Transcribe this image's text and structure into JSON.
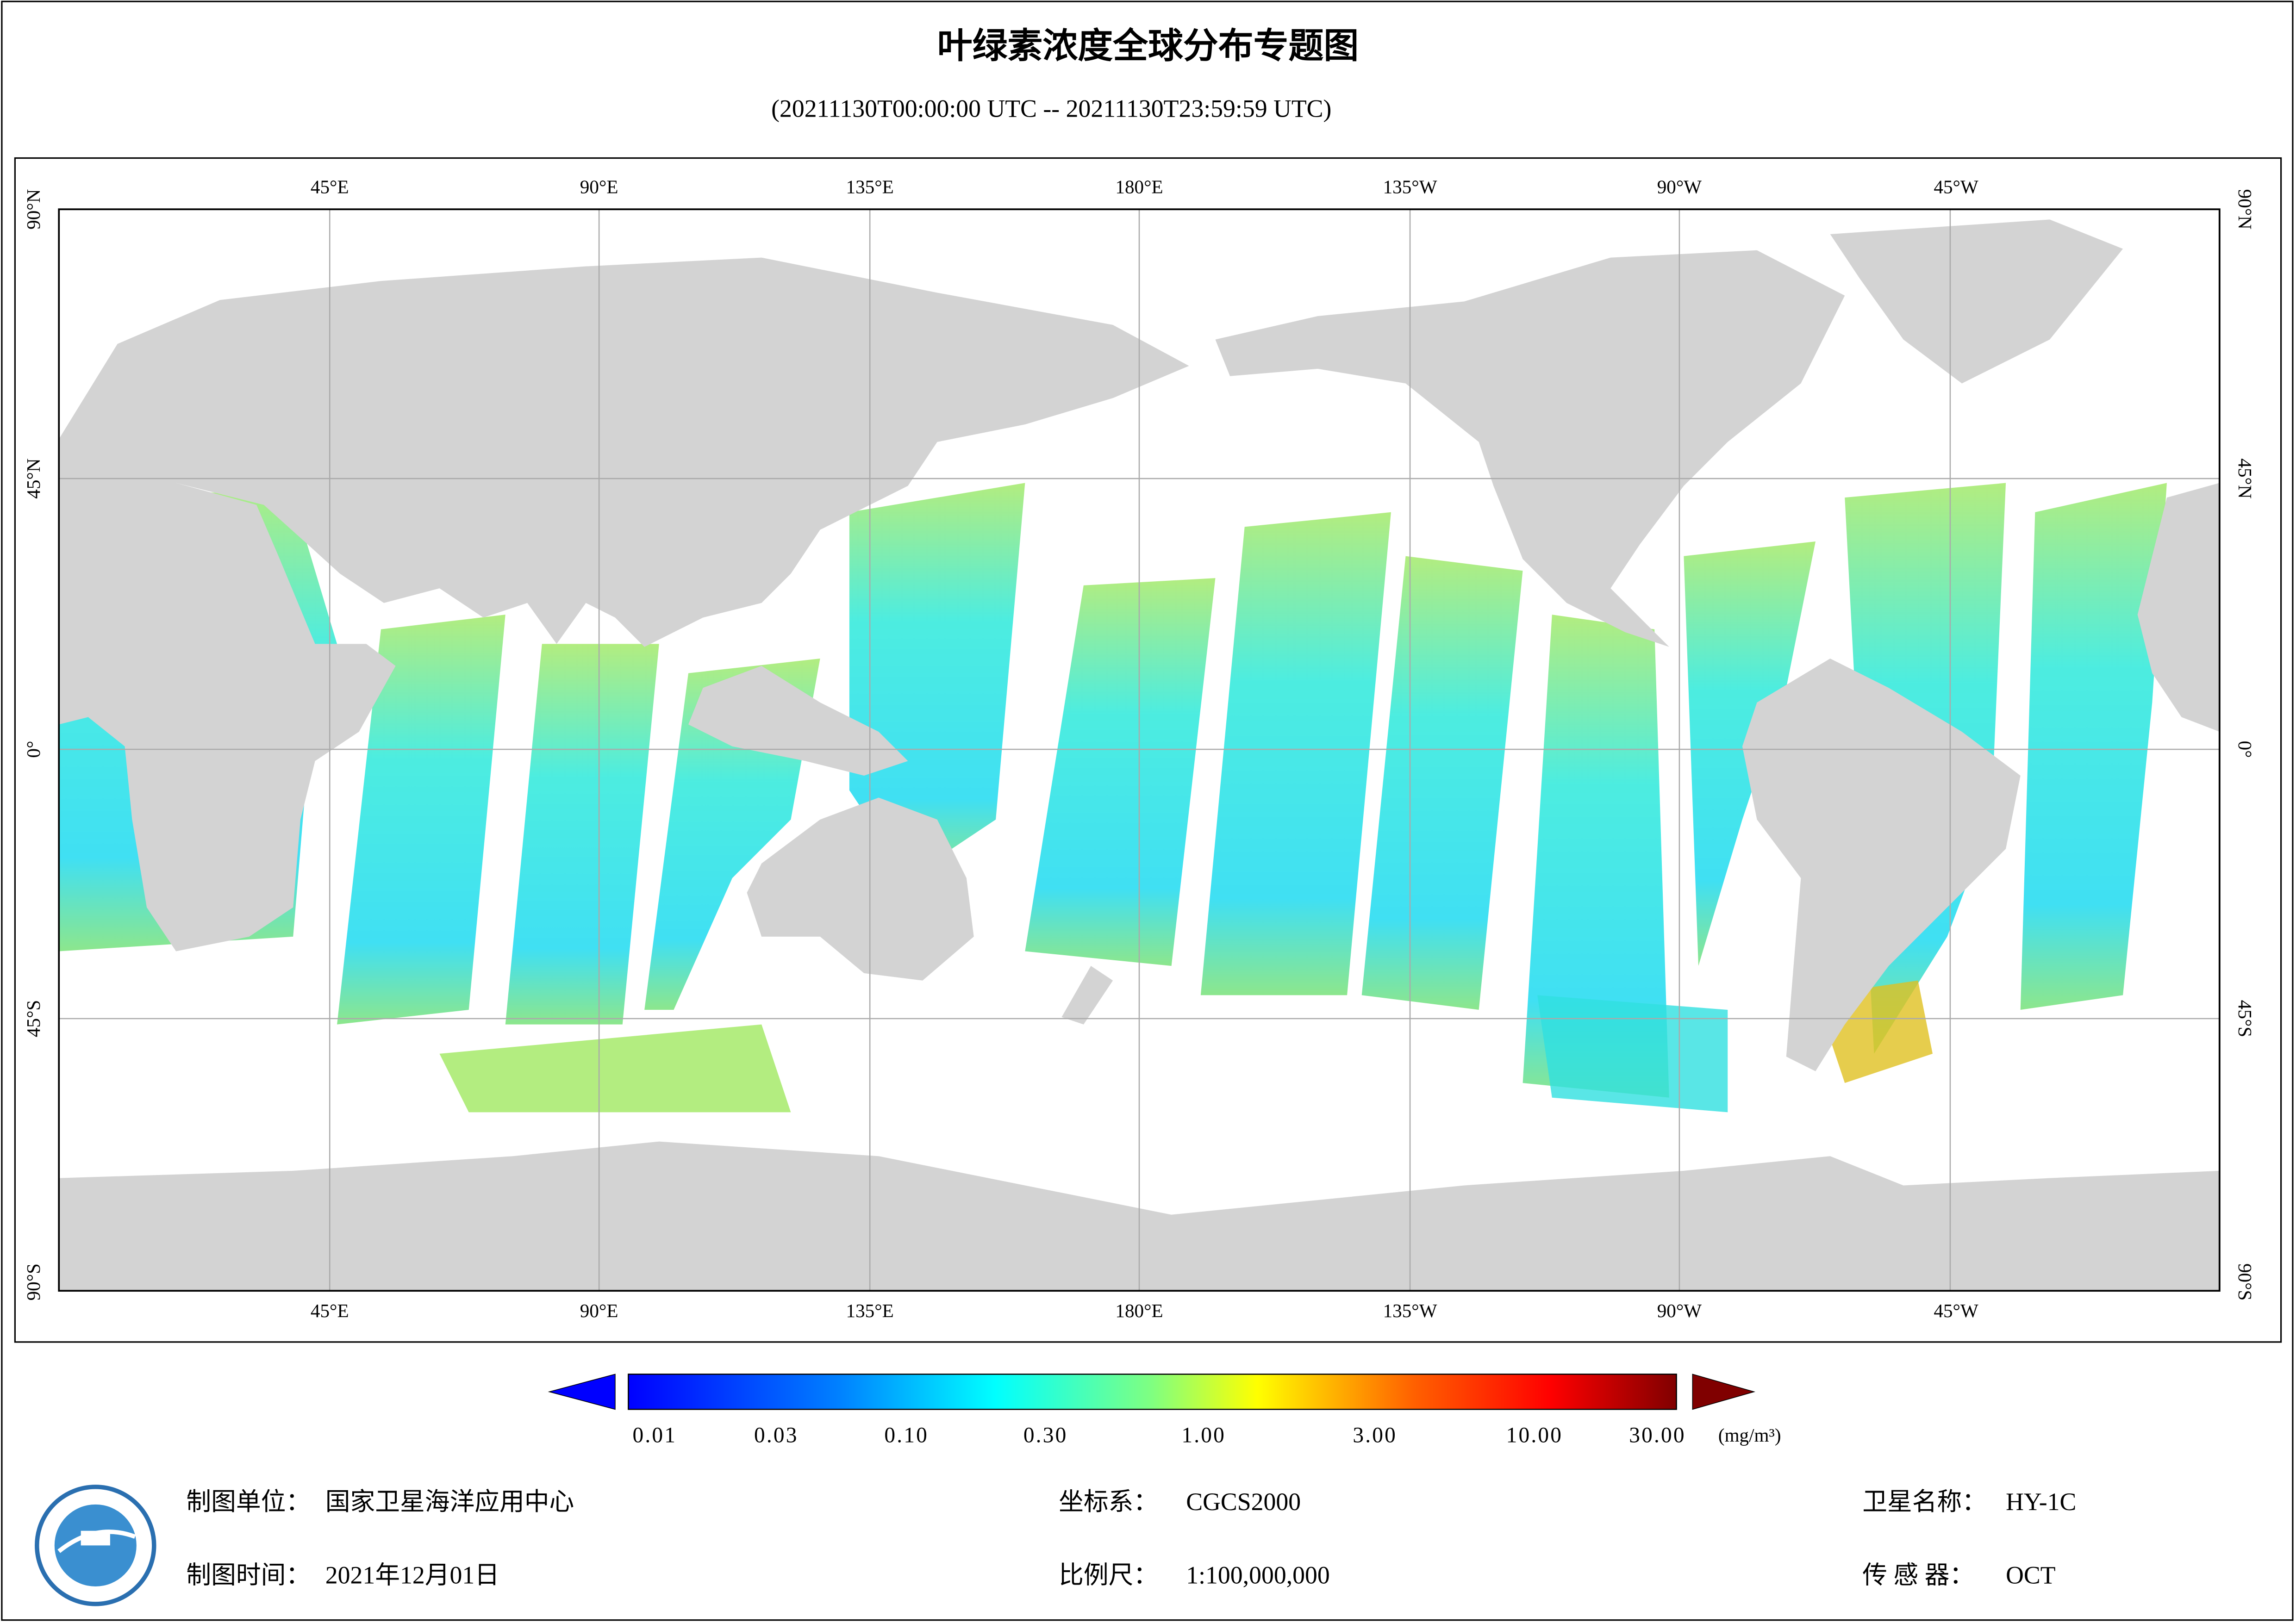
{
  "header": {
    "title": "叶绿素浓度全球分布专题图",
    "subtitle": "(20211130T00:00:00 UTC -- 20211130T23:59:59 UTC)"
  },
  "map": {
    "lon_labels": [
      "45°E",
      "90°E",
      "135°E",
      "180°E",
      "135°W",
      "90°W",
      "45°W"
    ],
    "lat_labels": [
      "90°N",
      "45°N",
      "0°",
      "45°S",
      "90°S"
    ]
  },
  "colorbar": {
    "labels": [
      "0.01",
      "0.03",
      "0.10",
      "0.30",
      "1.00",
      "3.00",
      "10.00",
      "30.00"
    ],
    "unit": "(mg/m³)"
  },
  "footer": {
    "producer": {
      "label": "制图单位：",
      "value": "国家卫星海洋应用中心"
    },
    "date": {
      "label": "制图时间：",
      "value": "2021年12月01日"
    },
    "crs": {
      "label": "坐标系：",
      "value": "CGCS2000"
    },
    "scale": {
      "label": "比例尺：",
      "value": "1:100,000,000"
    },
    "satellite": {
      "label": "卫星名称：",
      "value": "HY-1C"
    },
    "sensor": {
      "label": "传 感 器：",
      "value": "OCT"
    }
  }
}
